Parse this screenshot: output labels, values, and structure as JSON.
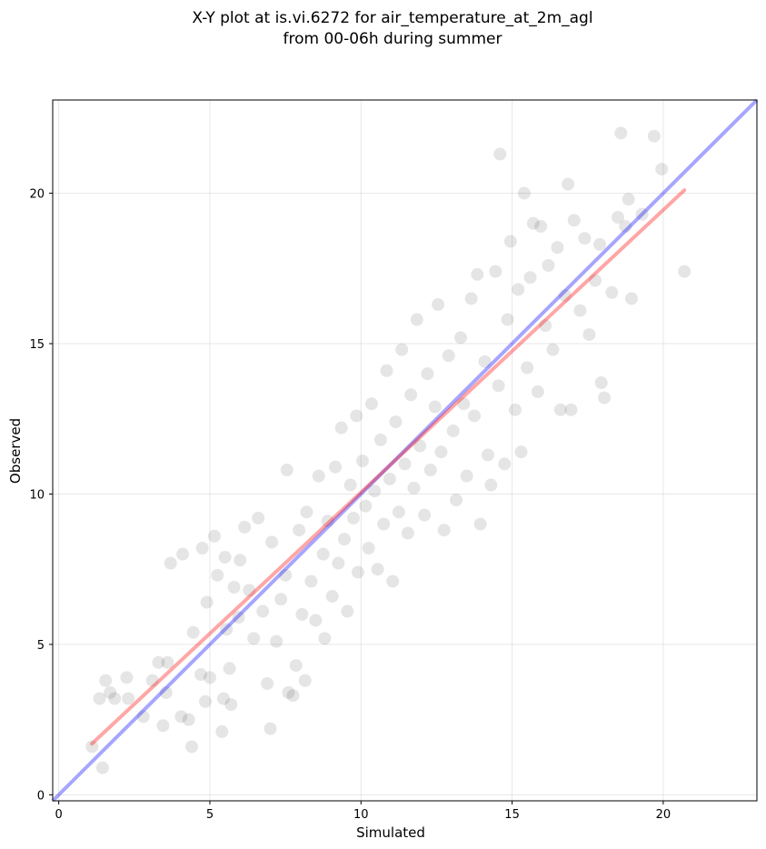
{
  "chart_data": {
    "type": "scatter",
    "title_lines": [
      "X-Y plot at is.vi.6272 for air_temperature_at_2m_agl",
      "from 00-06h during summer"
    ],
    "xlabel": "Simulated",
    "ylabel": "Observed",
    "xlim": [
      -0.2,
      23.1
    ],
    "ylim": [
      -0.2,
      23.1
    ],
    "x_ticks": [
      0,
      5,
      10,
      15,
      20
    ],
    "y_ticks": [
      0,
      5,
      10,
      15,
      20
    ],
    "grid": true,
    "point_color": "#000000",
    "point_alpha": 0.1,
    "points": [
      [
        1.1,
        1.6
      ],
      [
        1.45,
        0.9
      ],
      [
        1.35,
        3.2
      ],
      [
        1.55,
        3.8
      ],
      [
        1.7,
        3.4
      ],
      [
        1.85,
        3.2
      ],
      [
        2.25,
        3.9
      ],
      [
        2.3,
        3.2
      ],
      [
        2.8,
        2.6
      ],
      [
        3.1,
        3.8
      ],
      [
        3.3,
        4.4
      ],
      [
        3.45,
        2.3
      ],
      [
        3.6,
        4.4
      ],
      [
        3.55,
        3.4
      ],
      [
        3.7,
        7.7
      ],
      [
        4.05,
        2.6
      ],
      [
        4.1,
        8.0
      ],
      [
        4.3,
        2.5
      ],
      [
        4.4,
        1.6
      ],
      [
        4.45,
        5.4
      ],
      [
        4.7,
        4.0
      ],
      [
        4.75,
        8.2
      ],
      [
        4.85,
        3.1
      ],
      [
        4.9,
        6.4
      ],
      [
        5.0,
        3.9
      ],
      [
        5.15,
        8.6
      ],
      [
        5.25,
        7.3
      ],
      [
        5.4,
        2.1
      ],
      [
        5.45,
        3.2
      ],
      [
        5.5,
        7.9
      ],
      [
        5.55,
        5.5
      ],
      [
        5.65,
        4.2
      ],
      [
        5.7,
        3.0
      ],
      [
        5.8,
        6.9
      ],
      [
        5.95,
        5.9
      ],
      [
        6.0,
        7.8
      ],
      [
        6.15,
        8.9
      ],
      [
        6.3,
        6.8
      ],
      [
        6.45,
        5.2
      ],
      [
        6.6,
        9.2
      ],
      [
        6.75,
        6.1
      ],
      [
        6.9,
        3.7
      ],
      [
        7.0,
        2.2
      ],
      [
        7.05,
        8.4
      ],
      [
        7.2,
        5.1
      ],
      [
        7.35,
        6.5
      ],
      [
        7.5,
        7.3
      ],
      [
        7.55,
        10.8
      ],
      [
        7.6,
        3.4
      ],
      [
        7.75,
        3.3
      ],
      [
        7.85,
        4.3
      ],
      [
        7.95,
        8.8
      ],
      [
        8.05,
        6.0
      ],
      [
        8.15,
        3.8
      ],
      [
        8.2,
        9.4
      ],
      [
        8.35,
        7.1
      ],
      [
        8.5,
        5.8
      ],
      [
        8.6,
        10.6
      ],
      [
        8.75,
        8.0
      ],
      [
        8.8,
        5.2
      ],
      [
        8.9,
        9.1
      ],
      [
        9.05,
        6.6
      ],
      [
        9.15,
        10.9
      ],
      [
        9.25,
        7.7
      ],
      [
        9.35,
        12.2
      ],
      [
        9.45,
        8.5
      ],
      [
        9.55,
        6.1
      ],
      [
        9.65,
        10.3
      ],
      [
        9.75,
        9.2
      ],
      [
        9.85,
        12.6
      ],
      [
        9.9,
        7.4
      ],
      [
        10.05,
        11.1
      ],
      [
        10.15,
        9.6
      ],
      [
        10.25,
        8.2
      ],
      [
        10.35,
        13.0
      ],
      [
        10.45,
        10.1
      ],
      [
        10.55,
        7.5
      ],
      [
        10.65,
        11.8
      ],
      [
        10.75,
        9.0
      ],
      [
        10.85,
        14.1
      ],
      [
        10.95,
        10.5
      ],
      [
        11.05,
        7.1
      ],
      [
        11.15,
        12.4
      ],
      [
        11.25,
        9.4
      ],
      [
        11.35,
        14.8
      ],
      [
        11.45,
        11.0
      ],
      [
        11.55,
        8.7
      ],
      [
        11.65,
        13.3
      ],
      [
        11.75,
        10.2
      ],
      [
        11.85,
        15.8
      ],
      [
        11.95,
        11.6
      ],
      [
        12.1,
        9.3
      ],
      [
        12.2,
        14.0
      ],
      [
        12.3,
        10.8
      ],
      [
        12.45,
        12.9
      ],
      [
        12.55,
        16.3
      ],
      [
        12.65,
        11.4
      ],
      [
        12.75,
        8.8
      ],
      [
        12.9,
        14.6
      ],
      [
        13.05,
        12.1
      ],
      [
        13.15,
        9.8
      ],
      [
        13.3,
        15.2
      ],
      [
        13.4,
        13.0
      ],
      [
        13.5,
        10.6
      ],
      [
        13.65,
        16.5
      ],
      [
        13.75,
        12.6
      ],
      [
        13.85,
        17.3
      ],
      [
        13.95,
        9.0
      ],
      [
        14.1,
        14.4
      ],
      [
        14.2,
        11.3
      ],
      [
        14.3,
        10.3
      ],
      [
        14.45,
        17.4
      ],
      [
        14.55,
        13.6
      ],
      [
        14.6,
        21.3
      ],
      [
        14.75,
        11.0
      ],
      [
        14.85,
        15.8
      ],
      [
        14.95,
        18.4
      ],
      [
        15.1,
        12.8
      ],
      [
        15.2,
        16.8
      ],
      [
        15.3,
        11.4
      ],
      [
        15.4,
        20.0
      ],
      [
        15.5,
        14.2
      ],
      [
        15.6,
        17.2
      ],
      [
        15.7,
        19.0
      ],
      [
        15.85,
        13.4
      ],
      [
        15.95,
        18.9
      ],
      [
        16.1,
        15.6
      ],
      [
        16.2,
        17.6
      ],
      [
        16.35,
        14.8
      ],
      [
        16.5,
        18.2
      ],
      [
        16.6,
        12.8
      ],
      [
        16.75,
        16.6
      ],
      [
        16.85,
        20.3
      ],
      [
        16.95,
        12.8
      ],
      [
        17.05,
        19.1
      ],
      [
        17.25,
        16.1
      ],
      [
        17.4,
        18.5
      ],
      [
        17.55,
        15.3
      ],
      [
        17.75,
        17.1
      ],
      [
        17.9,
        18.3
      ],
      [
        17.95,
        13.7
      ],
      [
        18.05,
        13.2
      ],
      [
        18.3,
        16.7
      ],
      [
        18.5,
        19.2
      ],
      [
        18.6,
        22.0
      ],
      [
        18.75,
        18.9
      ],
      [
        18.85,
        19.8
      ],
      [
        18.95,
        16.5
      ],
      [
        19.3,
        19.3
      ],
      [
        19.7,
        21.9
      ],
      [
        19.95,
        20.8
      ],
      [
        20.7,
        17.4
      ]
    ],
    "fit_line": {
      "color": "#ff0000",
      "alpha": 0.35,
      "x": [
        1.1,
        20.7
      ],
      "y": [
        1.7,
        20.1
      ]
    },
    "identity_line": {
      "color": "#0000ff",
      "alpha": 0.35,
      "x": [
        -0.2,
        23.1
      ],
      "y": [
        -0.2,
        23.1
      ]
    }
  }
}
